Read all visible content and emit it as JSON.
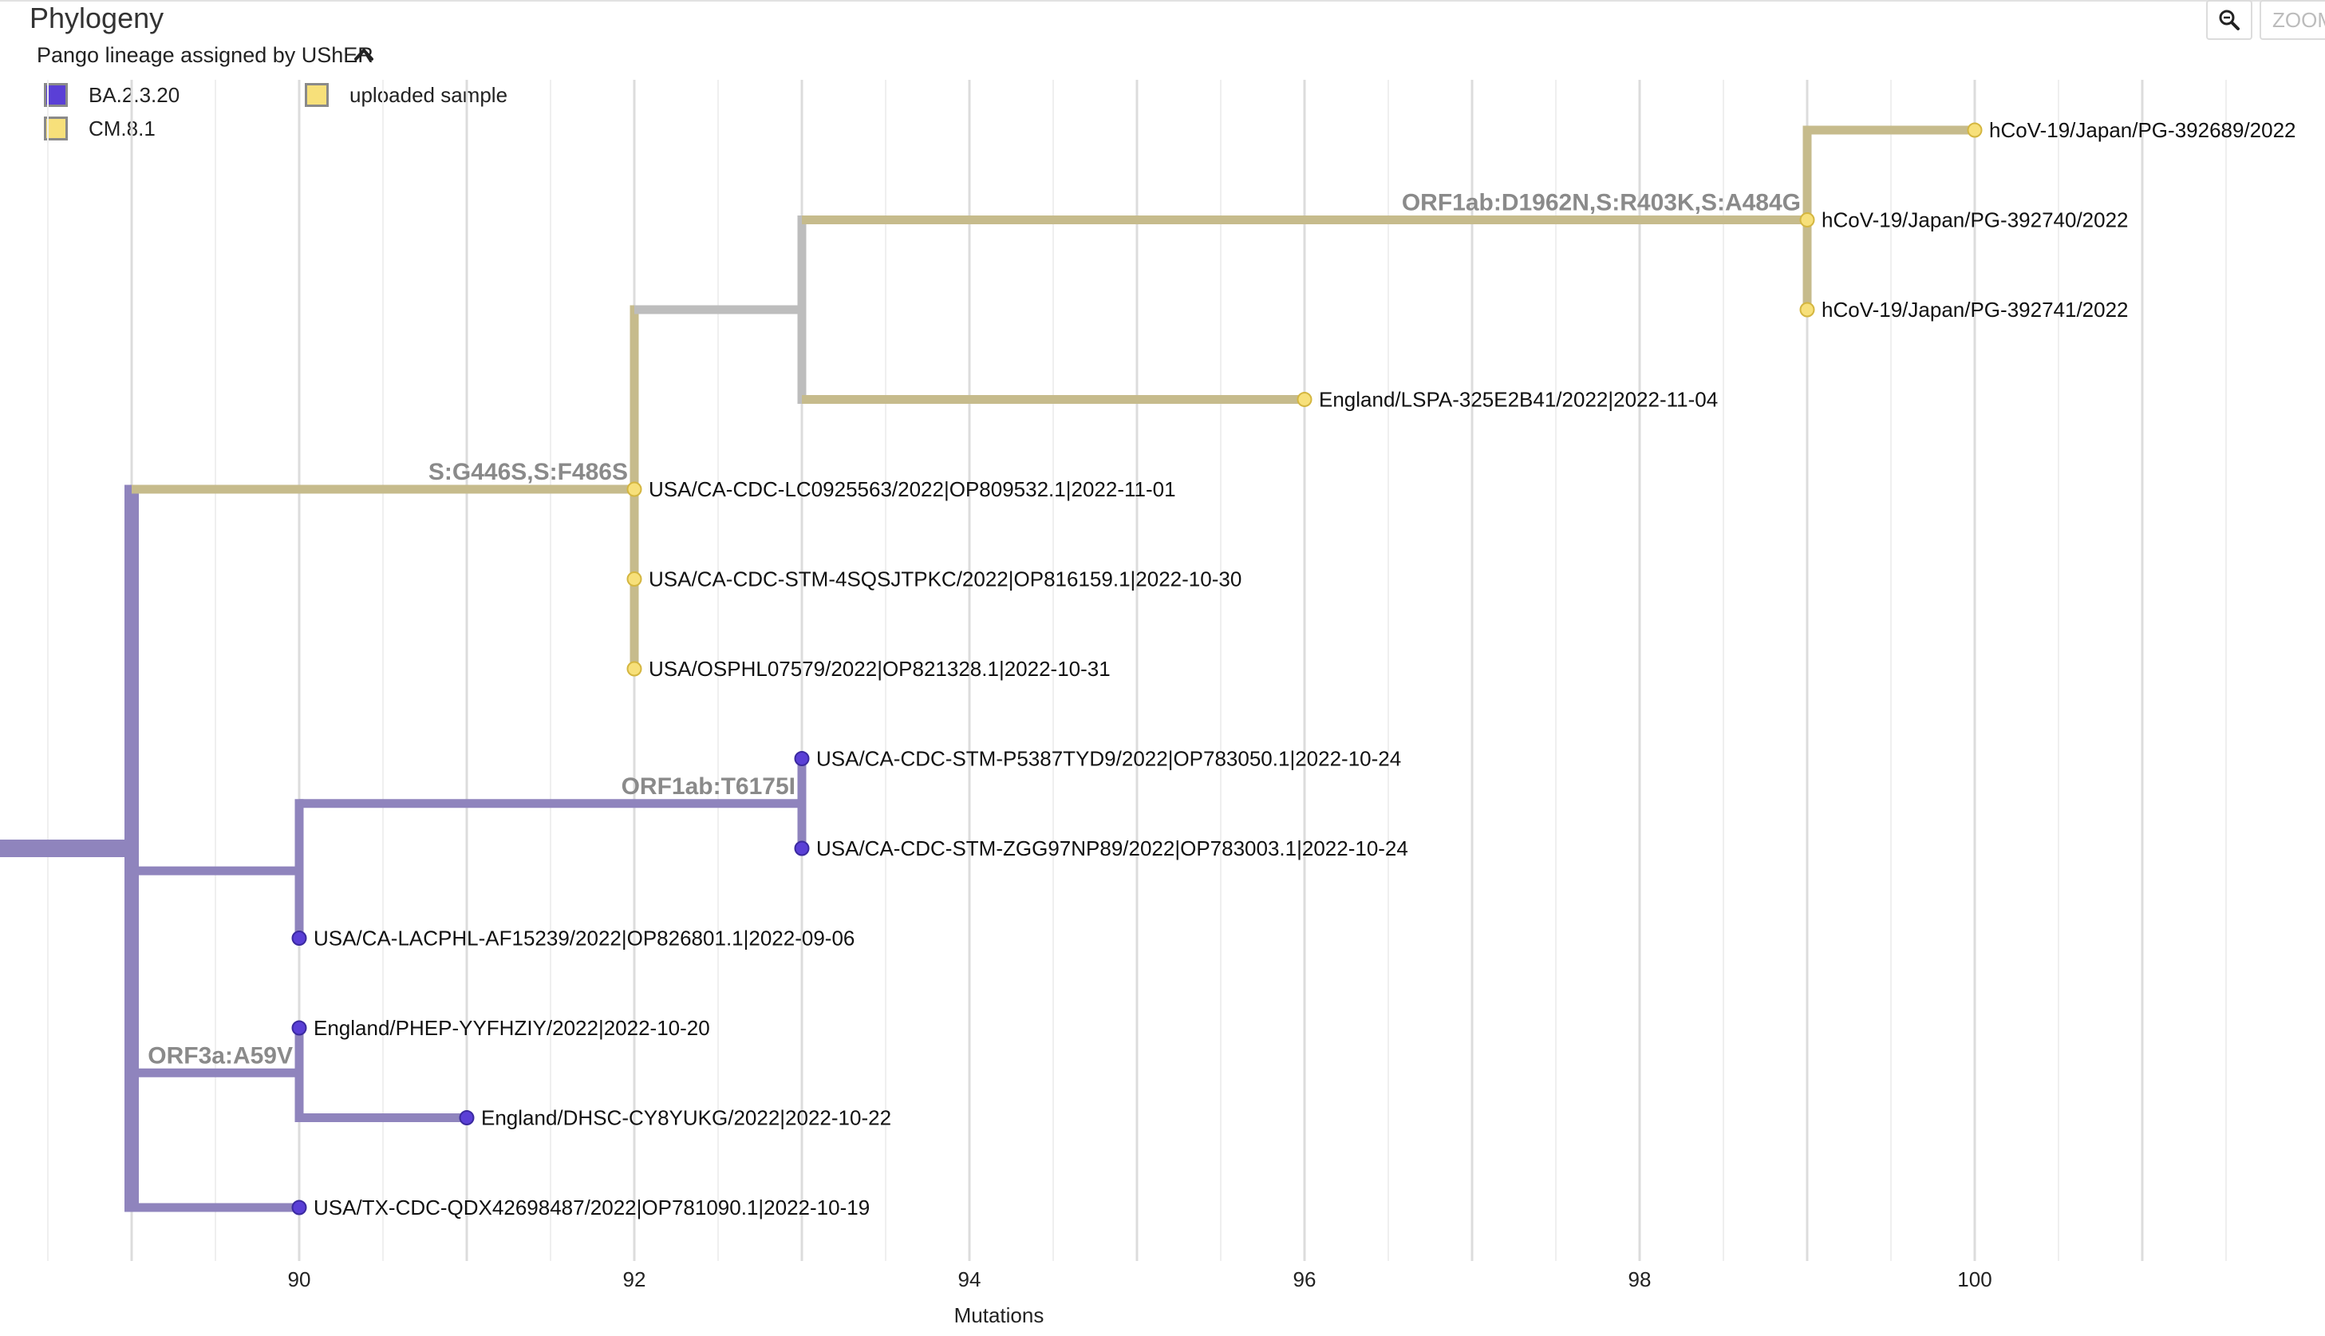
{
  "title": "Phylogeny",
  "legend": {
    "title": "Pango lineage assigned by UShER",
    "items": [
      {
        "label": "BA.2.3.20",
        "color": "#5a3fd6"
      },
      {
        "label": "uploaded sample",
        "color": "#f7e07a"
      },
      {
        "label": "CM.8.1",
        "color": "#f7e07a"
      }
    ]
  },
  "zoom": {
    "placeholder": "ZOOM"
  },
  "colors": {
    "ba": "#8f84bd",
    "cm": "#c6bb8c",
    "grey": "#bdbdbd",
    "ba_tip": "#5a3fd6",
    "cm_tip": "#f7e07a",
    "grid_major": "#dcdcdc",
    "grid_minor": "#efefef"
  },
  "chart_data": {
    "type": "tree",
    "xlabel": "Mutations",
    "xlim": [
      88.5,
      101.5
    ],
    "xticks": [
      90,
      92,
      94,
      96,
      98,
      100
    ],
    "nodes": [
      {
        "id": "root",
        "x": 88,
        "parent": null,
        "color": "ba"
      },
      {
        "id": "ba_root",
        "x": 89,
        "parent": "root",
        "color": "ba"
      },
      {
        "id": "cm_root",
        "x": 92,
        "parent": "ba_root",
        "color": "cm",
        "mutations": "S:G446S,S:F486S"
      },
      {
        "id": "g1",
        "x": 93,
        "parent": "cm_root",
        "color": "grey"
      },
      {
        "id": "japan",
        "x": 99,
        "parent": "g1",
        "color": "cm",
        "mutations": "ORF1ab:D1962N,S:R403K,S:A484G"
      },
      {
        "id": "t1",
        "x": 100,
        "parent": "japan",
        "color": "cm",
        "tip": true,
        "label": "hCoV-19/Japan/PG-392689/2022"
      },
      {
        "id": "t2",
        "x": 99,
        "parent": "japan",
        "color": "cm",
        "tip": true,
        "label": "hCoV-19/Japan/PG-392740/2022"
      },
      {
        "id": "t3",
        "x": 99,
        "parent": "japan",
        "color": "cm",
        "tip": true,
        "label": "hCoV-19/Japan/PG-392741/2022"
      },
      {
        "id": "t4",
        "x": 96,
        "parent": "g1",
        "color": "cm",
        "tip": true,
        "label": "England/LSPA-325E2B41/2022|2022-11-04"
      },
      {
        "id": "t5",
        "x": 92,
        "parent": "cm_root",
        "color": "cm",
        "tip": true,
        "label": "USA/CA-CDC-LC0925563/2022|OP809532.1|2022-11-01"
      },
      {
        "id": "t6",
        "x": 92,
        "parent": "cm_root",
        "color": "cm",
        "tip": true,
        "label": "USA/CA-CDC-STM-4SQSJTPKC/2022|OP816159.1|2022-10-30"
      },
      {
        "id": "t7",
        "x": 92,
        "parent": "cm_root",
        "color": "cm",
        "tip": true,
        "label": "USA/OSPHL07579/2022|OP821328.1|2022-10-31"
      },
      {
        "id": "b1",
        "x": 90,
        "parent": "ba_root",
        "color": "ba"
      },
      {
        "id": "b2",
        "x": 93,
        "parent": "b1",
        "color": "ba",
        "mutations": "ORF1ab:T6175I"
      },
      {
        "id": "t8",
        "x": 93,
        "parent": "b2",
        "color": "ba",
        "tip": true,
        "label": "USA/CA-CDC-STM-P5387TYD9/2022|OP783050.1|2022-10-24"
      },
      {
        "id": "t9",
        "x": 93,
        "parent": "b2",
        "color": "ba",
        "tip": true,
        "label": "USA/CA-CDC-STM-ZGG97NP89/2022|OP783003.1|2022-10-24"
      },
      {
        "id": "t10",
        "x": 90,
        "parent": "b1",
        "color": "ba",
        "tip": true,
        "label": "USA/CA-LACPHL-AF15239/2022|OP826801.1|2022-09-06"
      },
      {
        "id": "b3",
        "x": 90,
        "parent": "ba_root",
        "color": "ba",
        "mutations": "ORF3a:A59V"
      },
      {
        "id": "t11",
        "x": 90,
        "parent": "b3",
        "color": "ba",
        "tip": true,
        "label": "England/PHEP-YYFHZIY/2022|2022-10-20"
      },
      {
        "id": "t12",
        "x": 91,
        "parent": "b3",
        "color": "ba",
        "tip": true,
        "label": "England/DHSC-CY8YUKG/2022|2022-10-22"
      },
      {
        "id": "t13",
        "x": 90,
        "parent": "ba_root",
        "color": "ba",
        "tip": true,
        "label": "USA/TX-CDC-QDX42698487/2022|OP781090.1|2022-10-19"
      }
    ]
  }
}
